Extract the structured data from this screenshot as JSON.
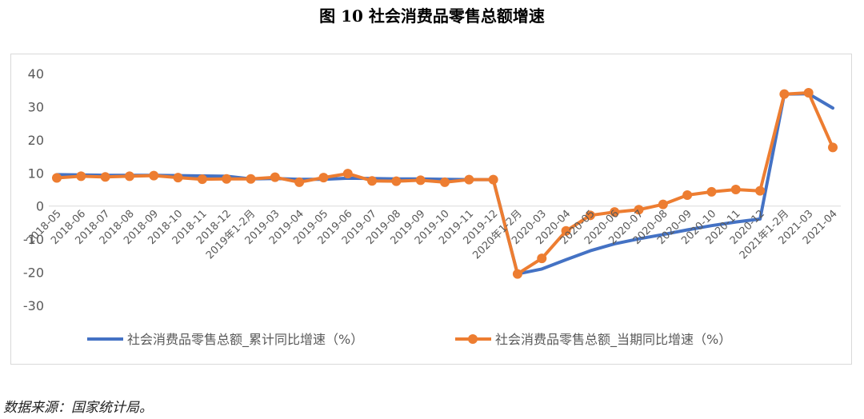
{
  "figure": {
    "title": "图 10  社会消费品零售总额增速",
    "source": "数据来源：国家统计局。"
  },
  "chart_data": {
    "type": "line",
    "title": "",
    "xlabel": "",
    "ylabel": "",
    "ylim": [
      -30,
      40
    ],
    "yticks": [
      40,
      30,
      20,
      10,
      0,
      -10,
      -20,
      -30
    ],
    "grid": false,
    "legend_position": "bottom",
    "categories": [
      "2018-05",
      "2018-06",
      "2018-07",
      "2018-08",
      "2018-09",
      "2018-10",
      "2018-11",
      "2018-12",
      "2019年1-2月",
      "2019-03",
      "2019-04",
      "2019-05",
      "2019-06",
      "2019-07",
      "2019-08",
      "2019-09",
      "2019-10",
      "2019-11",
      "2019-12",
      "2020年1-2月",
      "2020-03",
      "2020-04",
      "2020-05",
      "2020-06",
      "2020-07",
      "2020-08",
      "2020-09",
      "2020-10",
      "2020-11",
      "2020-12",
      "2021年1-2月",
      "2021-03",
      "2021-04"
    ],
    "series": [
      {
        "name": "社会消费品零售总额_累计同比增速（%）",
        "color": "#4472C4",
        "marker": false,
        "values": [
          9.5,
          9.4,
          9.3,
          9.3,
          9.3,
          9.2,
          9.1,
          9.0,
          8.2,
          8.3,
          8.1,
          8.1,
          8.4,
          8.3,
          8.2,
          8.2,
          8.1,
          8.0,
          8.0,
          -20.5,
          -19.0,
          -16.2,
          -13.5,
          -11.4,
          -9.9,
          -8.6,
          -7.2,
          -5.9,
          -4.8,
          -3.9,
          33.8,
          33.9,
          29.6
        ]
      },
      {
        "name": "社会消费品零售总额_当期同比增速（%）",
        "color": "#ED7D31",
        "marker": true,
        "values": [
          8.5,
          9.0,
          8.8,
          9.0,
          9.2,
          8.6,
          8.1,
          8.2,
          8.2,
          8.7,
          7.2,
          8.6,
          9.8,
          7.6,
          7.5,
          7.8,
          7.2,
          8.0,
          8.0,
          -20.5,
          -15.8,
          -7.5,
          -2.8,
          -1.8,
          -1.1,
          0.5,
          3.3,
          4.3,
          5.0,
          4.6,
          33.8,
          34.2,
          17.7
        ]
      }
    ]
  }
}
